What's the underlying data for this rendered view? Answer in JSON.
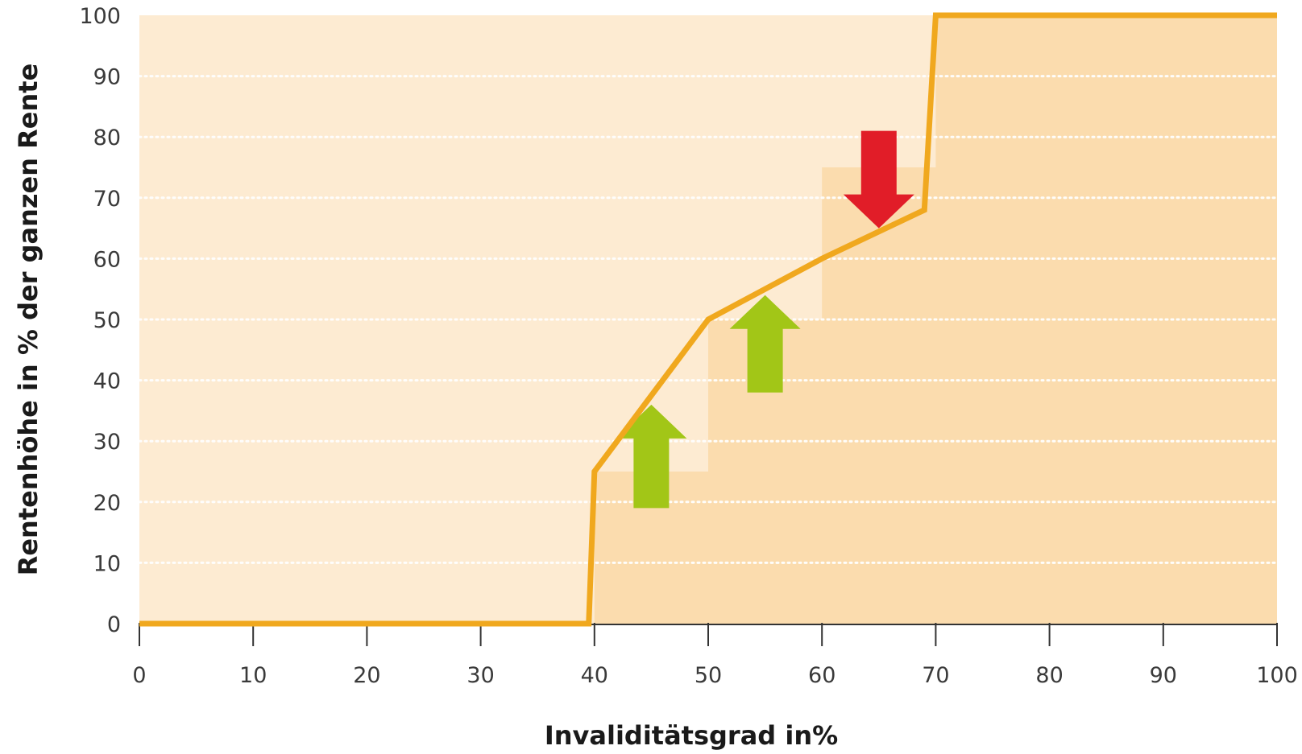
{
  "chart_data": {
    "type": "line",
    "title": "",
    "xlabel": "Invaliditätsgrad in%",
    "ylabel": "Rentenhöhe in % der ganzen Rente",
    "xlim": [
      0,
      100
    ],
    "ylim": [
      0,
      100
    ],
    "x_ticks": [
      "0",
      "10",
      "20",
      "30",
      "40",
      "50",
      "60",
      "70",
      "80",
      "90",
      "100"
    ],
    "y_ticks": [
      "0",
      "10",
      "20",
      "30",
      "40",
      "50",
      "60",
      "70",
      "80",
      "90",
      "100"
    ],
    "grid": "horizontal dotted",
    "series": [
      {
        "kind": "step-area",
        "points": [
          [
            40,
            25
          ],
          [
            50,
            25
          ],
          [
            50,
            50
          ],
          [
            60,
            50
          ],
          [
            60,
            75
          ],
          [
            70,
            75
          ],
          [
            70,
            100
          ],
          [
            100,
            100
          ]
        ]
      },
      {
        "kind": "line",
        "points": [
          [
            0,
            0
          ],
          [
            39.5,
            0
          ],
          [
            40,
            25
          ],
          [
            50,
            50
          ],
          [
            60,
            60
          ],
          [
            69,
            68
          ],
          [
            70,
            100
          ],
          [
            100,
            100
          ]
        ]
      }
    ],
    "annotations": [
      {
        "type": "arrow-up",
        "x": 45,
        "y_from": 19,
        "y_to": 36
      },
      {
        "type": "arrow-up",
        "x": 55,
        "y_from": 38,
        "y_to": 54
      },
      {
        "type": "arrow-down",
        "x": 65,
        "y_from": 81,
        "y_to": 65
      }
    ],
    "colors": {
      "plot_background": "#fdebd2",
      "step_fill": "#fbdcae",
      "line": "#f0a81e",
      "grid": "#ffffff",
      "arrow_up": "#a2c617",
      "arrow_down": "#e11d28",
      "axis": "#333333"
    }
  }
}
